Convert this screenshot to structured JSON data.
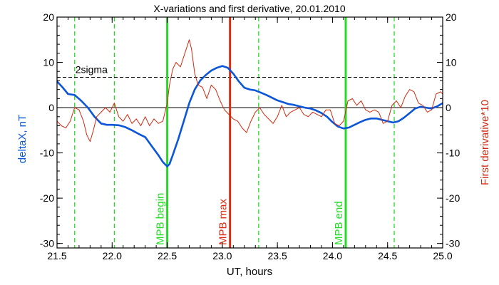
{
  "chart_data": {
    "type": "line",
    "title": "X-variations and first derivative, 20.01.2010",
    "xlabel": "UT, hours",
    "ylabel_left": "deltaX, nT",
    "ylabel_right": "First derivative*10",
    "xlim": [
      21.5,
      25.0
    ],
    "ylim_left": [
      -31,
      20
    ],
    "ylim_right": [
      -31,
      20
    ],
    "x_ticks": [
      "21.5",
      "22.0",
      "22.5",
      "23.0",
      "23.5",
      "24.0",
      "24.5",
      "25.0"
    ],
    "y_ticks_left": [
      "20",
      "10",
      "0",
      "-10",
      "-20",
      "-30"
    ],
    "y_ticks_right": [
      "20",
      "10",
      "0",
      "-10",
      "-20",
      "-30"
    ],
    "colors": {
      "deltaX": "#0a55d8",
      "derivative": "#d22a10",
      "mpb": "#22dd22",
      "max": "#dd2a10",
      "axes": "#000000"
    },
    "threshold": {
      "label": "2sigma",
      "y": 6.7
    },
    "zero_line": 0,
    "vertical_markers": [
      {
        "x": 22.5,
        "label": "MPB begin",
        "kind": "mpb"
      },
      {
        "x": 23.07,
        "label": "MPB max",
        "kind": "max"
      },
      {
        "x": 24.12,
        "label": "MPB end",
        "kind": "mpb"
      }
    ],
    "dashed_markers": [
      21.66,
      22.02,
      23.33,
      24.56
    ],
    "series": [
      {
        "name": "deltaX",
        "axis": "left",
        "x": [
          21.5,
          21.55,
          21.6,
          21.66,
          21.72,
          21.78,
          21.84,
          21.9,
          21.95,
          22.0,
          22.06,
          22.12,
          22.18,
          22.24,
          22.3,
          22.36,
          22.42,
          22.46,
          22.5,
          22.52,
          22.55,
          22.6,
          22.65,
          22.7,
          22.75,
          22.8,
          22.85,
          22.9,
          22.95,
          23.0,
          23.05,
          23.1,
          23.15,
          23.2,
          23.25,
          23.3,
          23.35,
          23.4,
          23.45,
          23.5,
          23.55,
          23.6,
          23.65,
          23.7,
          23.75,
          23.8,
          23.85,
          23.9,
          23.95,
          24.0,
          24.05,
          24.1,
          24.15,
          24.2,
          24.25,
          24.3,
          24.35,
          24.4,
          24.45,
          24.5,
          24.55,
          24.6,
          24.65,
          24.7,
          24.75,
          24.8,
          24.85,
          24.9,
          24.95,
          25.0
        ],
        "y": [
          5.8,
          4.5,
          3.0,
          2.8,
          1.5,
          0.0,
          -2.0,
          -3.5,
          -3.8,
          -3.8,
          -3.9,
          -4.3,
          -5.0,
          -5.8,
          -6.5,
          -8.5,
          -10.5,
          -12.0,
          -13.0,
          -12.5,
          -10.5,
          -7.0,
          -3.0,
          1.0,
          4.0,
          6.0,
          7.2,
          8.2,
          8.8,
          9.2,
          8.8,
          7.5,
          5.8,
          4.4,
          4.0,
          3.8,
          3.3,
          2.8,
          2.2,
          1.6,
          1.2,
          0.8,
          0.6,
          0.3,
          0.0,
          -0.2,
          -0.6,
          -1.2,
          -2.0,
          -3.2,
          -4.2,
          -4.6,
          -4.4,
          -3.8,
          -3.2,
          -2.7,
          -2.4,
          -2.4,
          -2.7,
          -3.0,
          -3.3,
          -3.0,
          -2.2,
          -1.2,
          -0.2,
          0.2,
          0.0,
          -0.2,
          0.3,
          1.0
        ]
      },
      {
        "name": "First derivative*10",
        "axis": "right",
        "x": [
          21.5,
          21.54,
          21.58,
          21.62,
          21.66,
          21.7,
          21.74,
          21.77,
          21.8,
          21.83,
          21.86,
          21.9,
          21.94,
          21.98,
          22.02,
          22.06,
          22.1,
          22.14,
          22.18,
          22.22,
          22.26,
          22.3,
          22.34,
          22.38,
          22.42,
          22.46,
          22.5,
          22.52,
          22.55,
          22.58,
          22.62,
          22.66,
          22.7,
          22.72,
          22.75,
          22.78,
          22.82,
          22.86,
          22.9,
          22.94,
          22.98,
          23.02,
          23.06,
          23.1,
          23.14,
          23.18,
          23.22,
          23.26,
          23.3,
          23.34,
          23.38,
          23.42,
          23.46,
          23.5,
          23.54,
          23.58,
          23.62,
          23.66,
          23.7,
          23.74,
          23.78,
          23.82,
          23.86,
          23.9,
          23.94,
          23.98,
          24.02,
          24.06,
          24.1,
          24.14,
          24.18,
          24.22,
          24.26,
          24.3,
          24.34,
          24.38,
          24.42,
          24.46,
          24.5,
          24.54,
          24.58,
          24.62,
          24.66,
          24.7,
          24.74,
          24.78,
          24.82,
          24.86,
          24.9,
          24.94,
          24.98,
          25.0
        ],
        "y": [
          -3.0,
          -4.0,
          -4.5,
          -3.0,
          0.0,
          -0.5,
          -3.0,
          -6.0,
          -7.5,
          -5.0,
          -2.0,
          -1.0,
          0.0,
          -1.0,
          1.0,
          -2.0,
          -3.0,
          -1.5,
          -3.5,
          -2.5,
          -4.0,
          -2.0,
          -4.0,
          -2.5,
          -3.5,
          -3.0,
          1.0,
          5.0,
          8.5,
          10.0,
          9.0,
          12.0,
          15.0,
          13.0,
          7.5,
          5.0,
          4.5,
          2.0,
          5.0,
          4.0,
          1.5,
          -0.5,
          -1.5,
          -2.5,
          -3.0,
          -4.5,
          -5.5,
          -3.0,
          -1.0,
          0.0,
          -1.5,
          -2.5,
          -3.5,
          -2.0,
          0.5,
          -2.0,
          -1.0,
          -0.5,
          0.0,
          -1.5,
          -2.0,
          -1.0,
          -1.5,
          -2.0,
          -0.5,
          -0.5,
          -3.5,
          -4.0,
          -3.0,
          1.5,
          2.0,
          0.5,
          1.5,
          -0.5,
          -1.0,
          -0.5,
          -1.0,
          -3.5,
          -3.0,
          0.5,
          1.5,
          0.0,
          2.5,
          4.0,
          3.5,
          1.0,
          0.5,
          -1.0,
          -0.5,
          3.0,
          3.5,
          3.0
        ]
      }
    ]
  }
}
